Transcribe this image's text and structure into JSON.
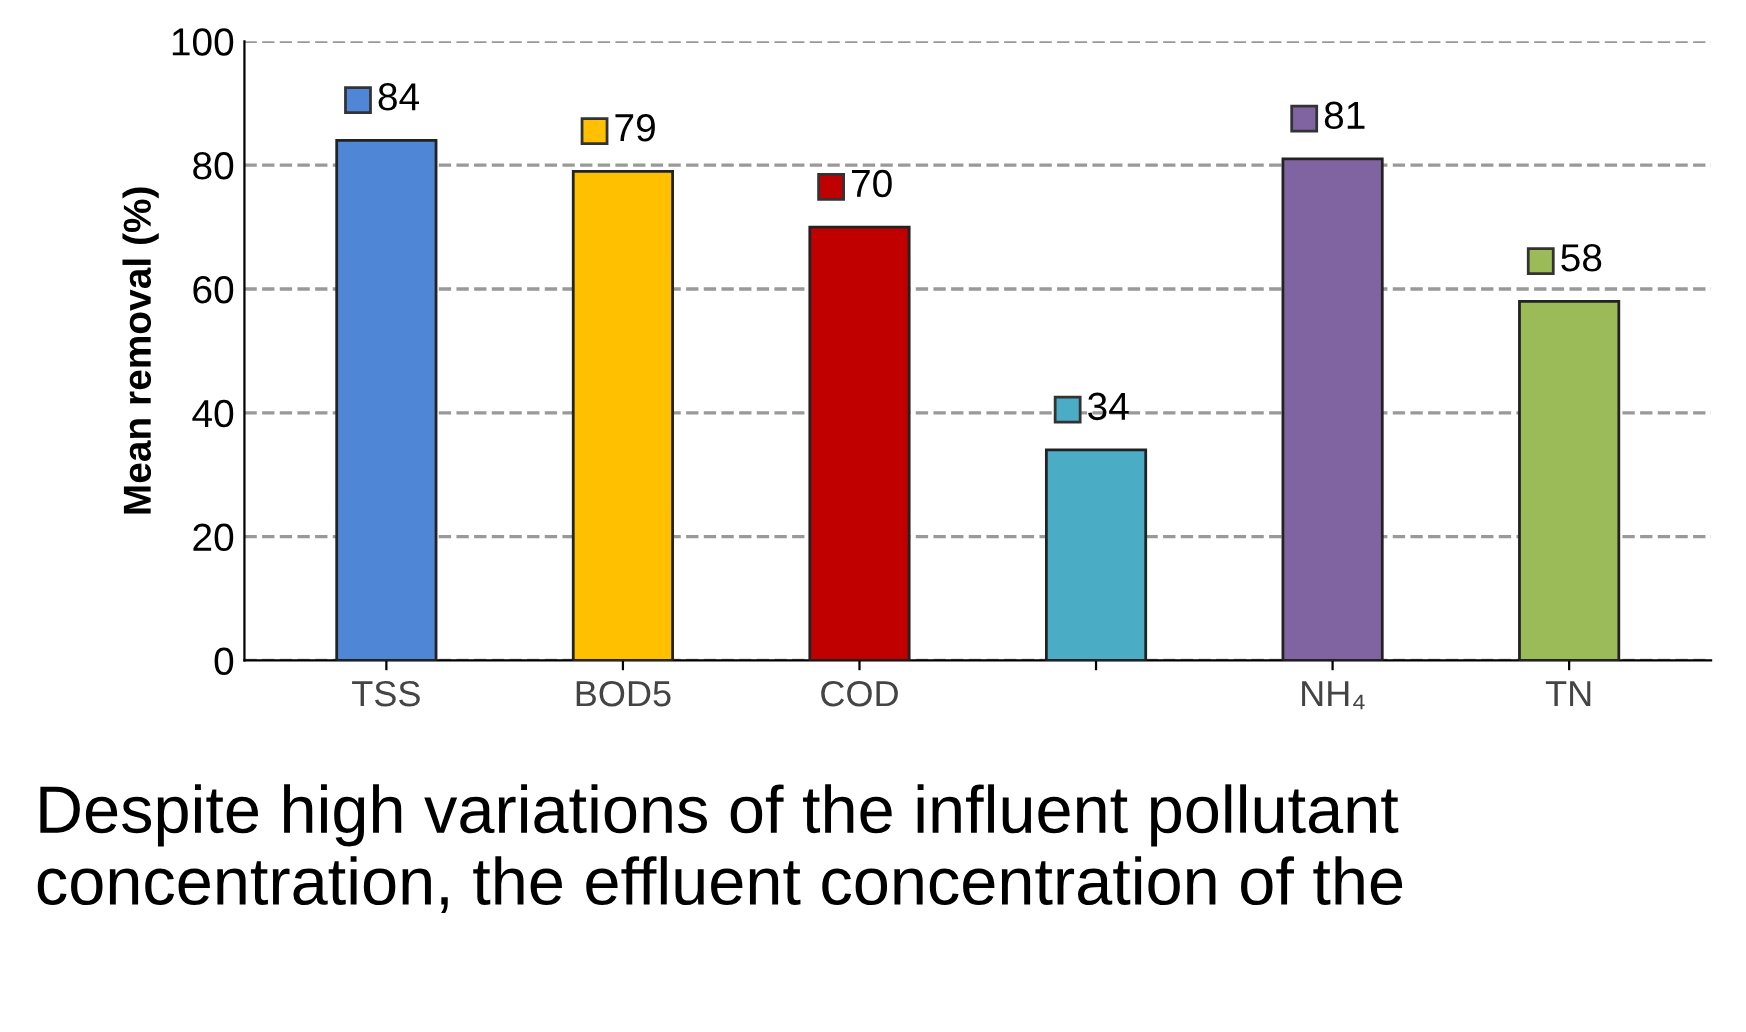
{
  "chart_data": {
    "type": "bar",
    "ylabel": "Mean removal (%)",
    "categories": [
      "TSS",
      "BOD5",
      "COD",
      null,
      "NH₄",
      "TN"
    ],
    "values": [
      84,
      79,
      70,
      34,
      81,
      58
    ],
    "colors": [
      "#4f86d6",
      "#ffc000",
      "#c00000",
      "#4bacc6",
      "#8064a2",
      "#9bbb59"
    ],
    "ylim": [
      0,
      100
    ],
    "yticks": [
      0,
      20,
      40,
      60,
      80,
      100
    ],
    "grid": "y",
    "data_labels": true,
    "annotations": [
      "Despite high variations of the influent pollutant concentration, the effluent concentration of the"
    ]
  }
}
